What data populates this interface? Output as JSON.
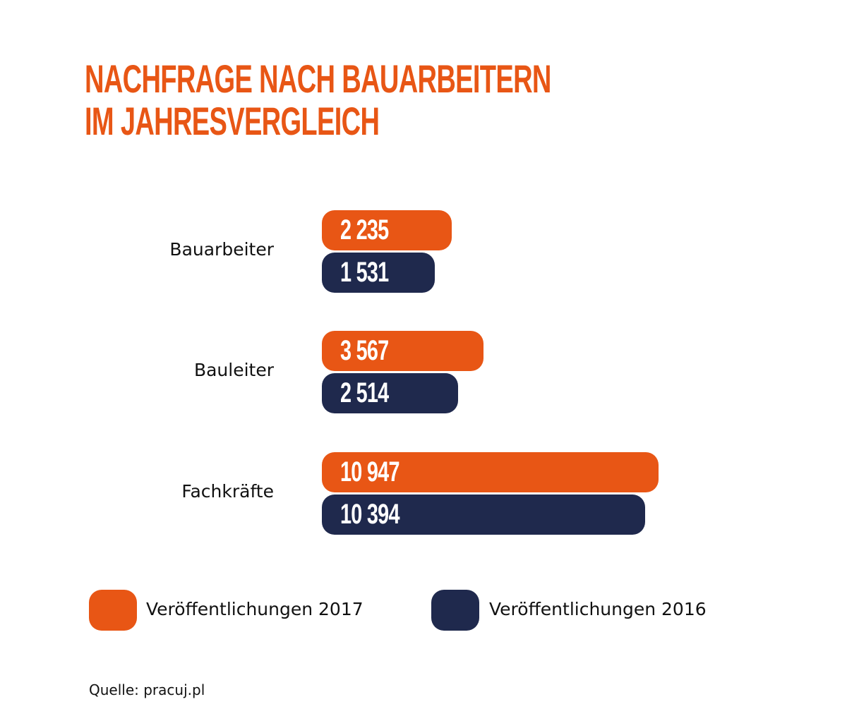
{
  "chart_data": {
    "type": "bar",
    "orientation": "horizontal",
    "title": "NACHFRAGE NACH BAUARBEITERN IM JAHRESVERGLEICH",
    "title_lines": [
      "NACHFRAGE NACH BAUARBEITERN",
      "IM JAHRESVERGLEICH"
    ],
    "categories": [
      "Bauarbeiter",
      "Bauleiter",
      "Fachkräfte"
    ],
    "series": [
      {
        "name": "Veröffentlichungen 2017",
        "color": "#e85615",
        "values": [
          2235,
          3567,
          10947
        ],
        "labels": [
          "2 235",
          "3 567",
          "10 947"
        ]
      },
      {
        "name": "Veröffentlichungen 2016",
        "color": "#1f294d",
        "values": [
          1531,
          2514,
          10394
        ],
        "labels": [
          "1 531",
          "2 514",
          "10 394"
        ]
      }
    ],
    "xlabel": "",
    "ylabel": "",
    "grid": false,
    "legend_position": "bottom",
    "source": "Quelle: pracuj.pl"
  }
}
